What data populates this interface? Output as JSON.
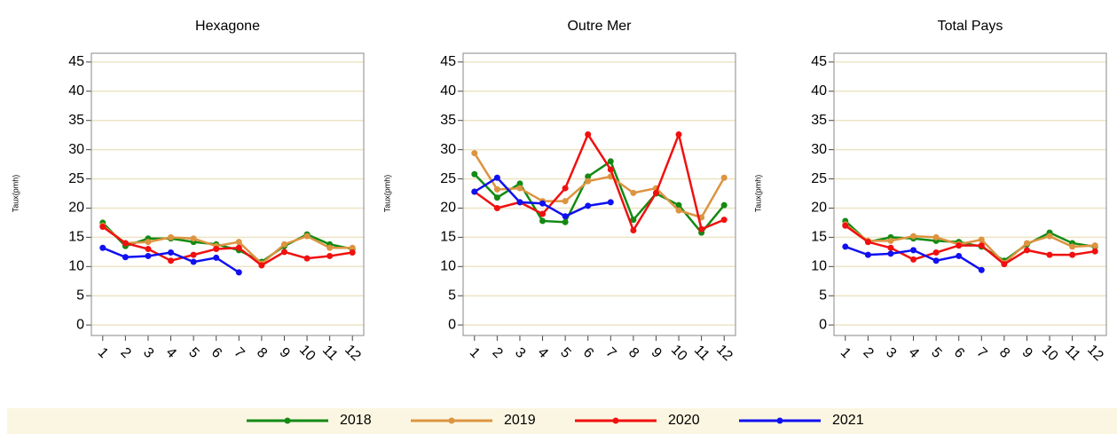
{
  "chart_data": [
    {
      "type": "line",
      "title": "Hexagone",
      "y_label": "Taux(pmh)",
      "x": [
        1,
        2,
        3,
        4,
        5,
        6,
        7,
        8,
        9,
        10,
        11,
        12
      ],
      "xlim": [
        0.5,
        12.5
      ],
      "xticks": [
        1,
        2,
        3,
        4,
        5,
        6,
        7,
        8,
        9,
        10,
        11,
        12
      ],
      "ylim": [
        -1.8,
        46.5
      ],
      "yticks": [
        0,
        5,
        10,
        15,
        20,
        25,
        30,
        35,
        40,
        45
      ],
      "grid": true,
      "series": [
        {
          "name": "2018",
          "color": "#138a13",
          "values": [
            17.5,
            13.5,
            14.8,
            14.8,
            14.2,
            13.8,
            12.8,
            10.8,
            13.5,
            15.5,
            13.8,
            13.0
          ]
        },
        {
          "name": "2019",
          "color": "#dc9440",
          "values": [
            17.0,
            14.0,
            14.2,
            15.0,
            14.8,
            13.5,
            14.2,
            10.5,
            13.8,
            15.2,
            13.2,
            13.2
          ]
        },
        {
          "name": "2020",
          "color": "#f01010",
          "values": [
            16.8,
            14.0,
            13.0,
            11.0,
            12.0,
            13.0,
            13.2,
            10.2,
            12.5,
            11.4,
            11.8,
            12.4
          ]
        },
        {
          "name": "2021",
          "color": "#1010f0",
          "values": [
            13.2,
            11.6,
            11.8,
            12.4,
            10.8,
            11.5,
            9.0,
            null,
            null,
            null,
            null,
            null
          ]
        }
      ]
    },
    {
      "type": "line",
      "title": "Outre Mer",
      "y_label": "Taux(pmh)",
      "x": [
        1,
        2,
        3,
        4,
        5,
        6,
        7,
        8,
        9,
        10,
        11,
        12
      ],
      "xlim": [
        0.5,
        12.5
      ],
      "xticks": [
        1,
        2,
        3,
        4,
        5,
        6,
        7,
        8,
        9,
        10,
        11,
        12
      ],
      "ylim": [
        -1.8,
        46.5
      ],
      "yticks": [
        0,
        5,
        10,
        15,
        20,
        25,
        30,
        35,
        40,
        45
      ],
      "grid": true,
      "series": [
        {
          "name": "2018",
          "color": "#138a13",
          "values": [
            25.8,
            21.8,
            24.2,
            17.8,
            17.6,
            25.4,
            28.0,
            18.0,
            22.5,
            20.5,
            15.8,
            20.5
          ]
        },
        {
          "name": "2019",
          "color": "#dc9440",
          "values": [
            29.4,
            23.2,
            23.4,
            21.2,
            21.2,
            24.6,
            25.4,
            22.6,
            23.4,
            19.6,
            18.4,
            25.2
          ]
        },
        {
          "name": "2020",
          "color": "#f01010",
          "values": [
            22.8,
            20.0,
            21.0,
            19.0,
            23.4,
            32.6,
            26.6,
            16.2,
            22.6,
            32.6,
            16.4,
            18.0
          ]
        },
        {
          "name": "2021",
          "color": "#1010f0",
          "values": [
            22.8,
            25.2,
            21.0,
            20.8,
            18.6,
            20.4,
            21.0,
            null,
            null,
            null,
            null,
            null
          ]
        }
      ]
    },
    {
      "type": "line",
      "title": "Total Pays",
      "y_label": "Taux(pmh)",
      "x": [
        1,
        2,
        3,
        4,
        5,
        6,
        7,
        8,
        9,
        10,
        11,
        12
      ],
      "xlim": [
        0.5,
        12.5
      ],
      "xticks": [
        1,
        2,
        3,
        4,
        5,
        6,
        7,
        8,
        9,
        10,
        11,
        12
      ],
      "ylim": [
        -1.8,
        46.5
      ],
      "yticks": [
        0,
        5,
        10,
        15,
        20,
        25,
        30,
        35,
        40,
        45
      ],
      "grid": true,
      "series": [
        {
          "name": "2018",
          "color": "#138a13",
          "values": [
            17.8,
            14.2,
            15.0,
            14.8,
            14.4,
            14.2,
            13.4,
            11.0,
            13.8,
            15.8,
            14.0,
            13.4
          ]
        },
        {
          "name": "2019",
          "color": "#dc9440",
          "values": [
            17.2,
            14.4,
            14.4,
            15.2,
            15.0,
            13.8,
            14.6,
            10.6,
            14.0,
            15.2,
            13.4,
            13.6
          ]
        },
        {
          "name": "2020",
          "color": "#f01010",
          "values": [
            17.0,
            14.2,
            13.2,
            11.2,
            12.4,
            13.6,
            13.6,
            10.4,
            12.8,
            12.0,
            12.0,
            12.6
          ]
        },
        {
          "name": "2021",
          "color": "#1010f0",
          "values": [
            13.4,
            12.0,
            12.2,
            12.8,
            11.0,
            11.8,
            9.4,
            null,
            null,
            null,
            null,
            null
          ]
        }
      ]
    }
  ]
}
